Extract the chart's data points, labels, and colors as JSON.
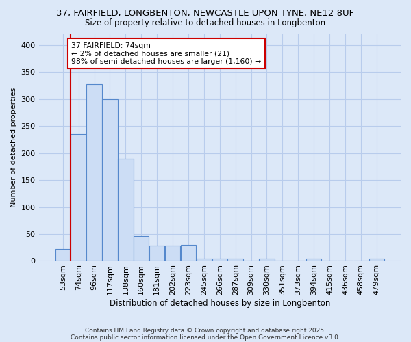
{
  "title_line1": "37, FAIRFIELD, LONGBENTON, NEWCASTLE UPON TYNE, NE12 8UF",
  "title_line2": "Size of property relative to detached houses in Longbenton",
  "xlabel": "Distribution of detached houses by size in Longbenton",
  "ylabel": "Number of detached properties",
  "categories": [
    "53sqm",
    "74sqm",
    "96sqm",
    "117sqm",
    "138sqm",
    "160sqm",
    "181sqm",
    "202sqm",
    "223sqm",
    "245sqm",
    "266sqm",
    "287sqm",
    "309sqm",
    "330sqm",
    "351sqm",
    "373sqm",
    "394sqm",
    "415sqm",
    "436sqm",
    "458sqm",
    "479sqm"
  ],
  "values": [
    22,
    235,
    328,
    300,
    190,
    46,
    28,
    28,
    30,
    5,
    5,
    5,
    0,
    4,
    0,
    0,
    4,
    0,
    0,
    0,
    4
  ],
  "bar_color": "#ccddf5",
  "bar_edgecolor": "#5588cc",
  "highlight_index": 1,
  "highlight_line_color": "#cc0000",
  "ylim": [
    0,
    420
  ],
  "yticks": [
    0,
    50,
    100,
    150,
    200,
    250,
    300,
    350,
    400
  ],
  "annotation_text": "37 FAIRFIELD: 74sqm\n← 2% of detached houses are smaller (21)\n98% of semi-detached houses are larger (1,160) →",
  "annotation_box_color": "#cc0000",
  "footnote1": "Contains HM Land Registry data © Crown copyright and database right 2025.",
  "footnote2": "Contains public sector information licensed under the Open Government Licence v3.0.",
  "background_color": "#dce8f8",
  "grid_color": "#b8ccec"
}
